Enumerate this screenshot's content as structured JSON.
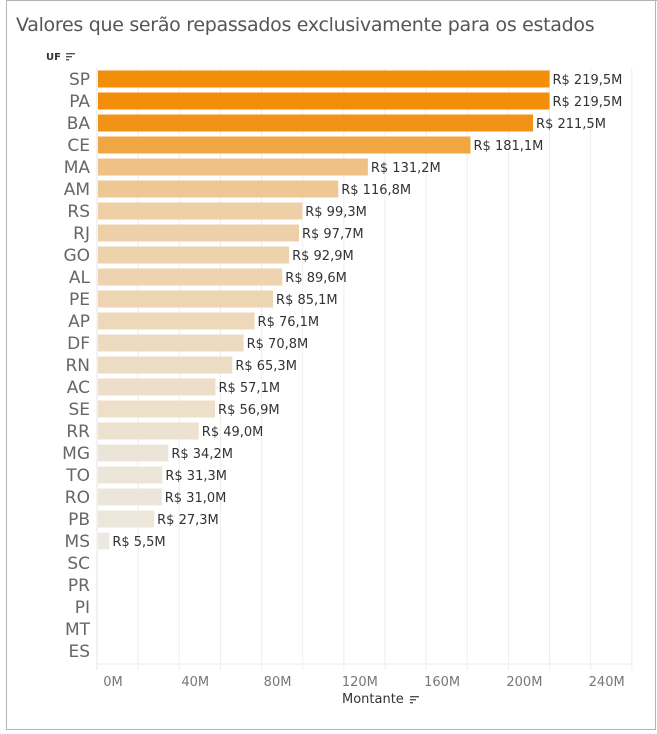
{
  "title": "Valores que serão repassados exclusivamente para os estados",
  "row_header": "UF",
  "x_axis_title": "Montante",
  "chart_data": {
    "type": "bar",
    "orientation": "horizontal",
    "title": "Valores que serão repassados exclusivamente para os estados",
    "xlabel": "Montante",
    "ylabel": "UF",
    "xlim": [
      0,
      270
    ],
    "x_unit": "M",
    "x_ticks": [
      0,
      40,
      80,
      120,
      160,
      200,
      240
    ],
    "x_tick_labels": [
      "0M",
      "40M",
      "80M",
      "120M",
      "160M",
      "200M",
      "240M"
    ],
    "grid": true,
    "color_scale": {
      "low": "#ece9e3",
      "high": "#f28e0a"
    },
    "categories": [
      "SP",
      "PA",
      "BA",
      "CE",
      "MA",
      "AM",
      "RS",
      "RJ",
      "GO",
      "AL",
      "PE",
      "AP",
      "DF",
      "RN",
      "AC",
      "SE",
      "RR",
      "MG",
      "TO",
      "RO",
      "PB",
      "MS",
      "SC",
      "PR",
      "PI",
      "MT",
      "ES"
    ],
    "values": [
      219.5,
      219.5,
      211.5,
      181.1,
      131.2,
      116.8,
      99.3,
      97.7,
      92.9,
      89.6,
      85.1,
      76.1,
      70.8,
      65.3,
      57.1,
      56.9,
      49.0,
      34.2,
      31.3,
      31.0,
      27.3,
      5.5,
      null,
      null,
      null,
      null,
      null
    ],
    "labels": [
      "R$ 219,5M",
      "R$ 219,5M",
      "R$ 211,5M",
      "R$ 181,1M",
      "R$ 131,2M",
      "R$ 116,8M",
      "R$ 99,3M",
      "R$ 97,7M",
      "R$ 92,9M",
      "R$ 89,6M",
      "R$ 85,1M",
      "R$ 76,1M",
      "R$ 70,8M",
      "R$ 65,3M",
      "R$ 57,1M",
      "R$ 56,9M",
      "R$ 49,0M",
      "R$ 34,2M",
      "R$ 31,3M",
      "R$ 31,0M",
      "R$ 27,3M",
      "R$ 5,5M",
      "",
      "",
      "",
      "",
      ""
    ]
  }
}
